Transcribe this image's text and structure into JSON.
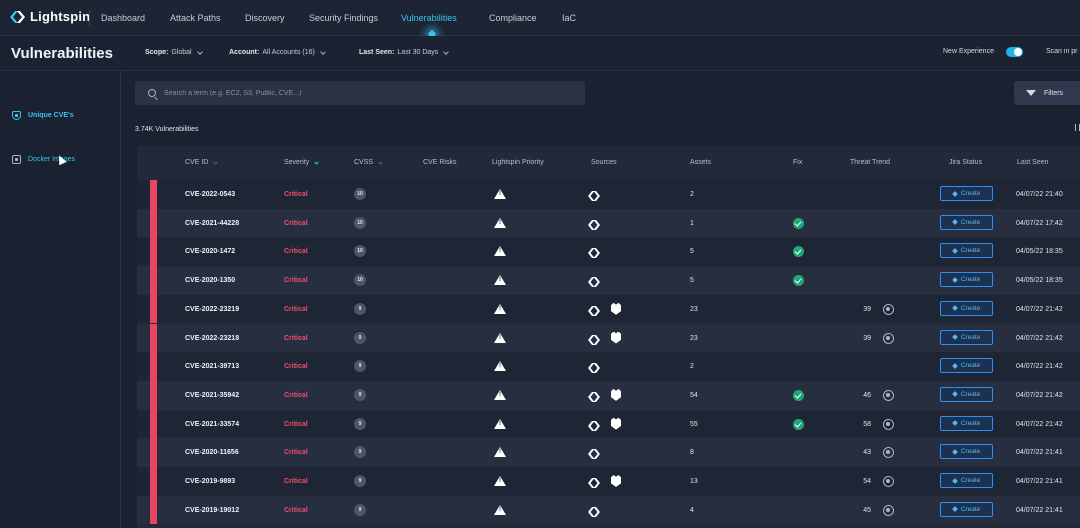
{
  "app": {
    "name": "Lightspin"
  },
  "nav": {
    "items": [
      "Dashboard",
      "Attack Paths",
      "Discovery",
      "Security Findings",
      "Vulnerabilities",
      "Compliance",
      "IaC"
    ],
    "active": "Vulnerabilities"
  },
  "header": {
    "title": "Vulnerabilities",
    "scope_label": "Scope:",
    "scope_value": "Global",
    "account_label": "Account:",
    "account_value": "All Accounts (16)",
    "lastseen_label": "Last Seen:",
    "lastseen_value": "Last 30 Days",
    "new_experience": "New Experience",
    "new_experience_on": true,
    "scan_label": "Scan in pr"
  },
  "sidebar": {
    "items": [
      {
        "label": "Unique CVE's",
        "active": true
      },
      {
        "label": "Docker Images",
        "active": false
      }
    ]
  },
  "search": {
    "placeholder": "Search a term (e.g. EC2, S3, Public, CVE...)",
    "value": ""
  },
  "filters_label": "Filters",
  "count_label": "3.74K Vulnerabilities",
  "table": {
    "columns": [
      "CVE ID",
      "Severity",
      "CVSS",
      "CVE Risks",
      "Lightspin Priority",
      "Sources",
      "Assets",
      "Fix",
      "Threat Trend",
      "Jira Status",
      "Last Seen"
    ],
    "rows": [
      {
        "cve": "CVE-2022-0543",
        "severity": "Critical",
        "cvss": "10",
        "extra_source": false,
        "assets": "2",
        "fix": false,
        "trend": "",
        "jira": "Create",
        "last_seen": "04/07/22 21:40"
      },
      {
        "cve": "CVE-2021-44228",
        "severity": "Critical",
        "cvss": "10",
        "extra_source": false,
        "assets": "1",
        "fix": true,
        "trend": "",
        "jira": "Create",
        "last_seen": "04/07/22 17:42"
      },
      {
        "cve": "CVE-2020-1472",
        "severity": "Critical",
        "cvss": "10",
        "extra_source": false,
        "assets": "5",
        "fix": true,
        "trend": "",
        "jira": "Create",
        "last_seen": "04/05/22 18:35"
      },
      {
        "cve": "CVE-2020-1350",
        "severity": "Critical",
        "cvss": "10",
        "extra_source": false,
        "assets": "5",
        "fix": true,
        "trend": "",
        "jira": "Create",
        "last_seen": "04/05/22 18:35"
      },
      {
        "cve": "CVE-2022-23219",
        "severity": "Critical",
        "cvss": "9",
        "extra_source": true,
        "assets": "23",
        "fix": false,
        "trend": "39",
        "jira": "Create",
        "last_seen": "04/07/22 21:42"
      },
      {
        "cve": "CVE-2022-23218",
        "severity": "Critical",
        "cvss": "9",
        "extra_source": true,
        "assets": "23",
        "fix": false,
        "trend": "39",
        "jira": "Create",
        "last_seen": "04/07/22 21:42"
      },
      {
        "cve": "CVE-2021-39713",
        "severity": "Critical",
        "cvss": "9",
        "extra_source": false,
        "assets": "2",
        "fix": false,
        "trend": "",
        "jira": "Create",
        "last_seen": "04/07/22 21:42"
      },
      {
        "cve": "CVE-2021-35942",
        "severity": "Critical",
        "cvss": "9",
        "extra_source": true,
        "assets": "54",
        "fix": true,
        "trend": "46",
        "jira": "Create",
        "last_seen": "04/07/22 21:42"
      },
      {
        "cve": "CVE-2021-33574",
        "severity": "Critical",
        "cvss": "9",
        "extra_source": true,
        "assets": "55",
        "fix": true,
        "trend": "58",
        "jira": "Create",
        "last_seen": "04/07/22 21:42"
      },
      {
        "cve": "CVE-2020-11656",
        "severity": "Critical",
        "cvss": "9",
        "extra_source": false,
        "assets": "8",
        "fix": false,
        "trend": "43",
        "jira": "Create",
        "last_seen": "04/07/22 21:41"
      },
      {
        "cve": "CVE-2019-9893",
        "severity": "Critical",
        "cvss": "9",
        "extra_source": true,
        "assets": "13",
        "fix": false,
        "trend": "54",
        "jira": "Create",
        "last_seen": "04/07/22 21:41"
      },
      {
        "cve": "CVE-2019-19012",
        "severity": "Critical",
        "cvss": "9",
        "extra_source": false,
        "assets": "4",
        "fix": false,
        "trend": "45",
        "jira": "Create",
        "last_seen": "04/07/22 21:41"
      }
    ]
  },
  "colors": {
    "accent": "#37c6f0",
    "critical": "#f04e68",
    "fix_ok": "#1fa877",
    "jira": "#2f8ff0"
  }
}
